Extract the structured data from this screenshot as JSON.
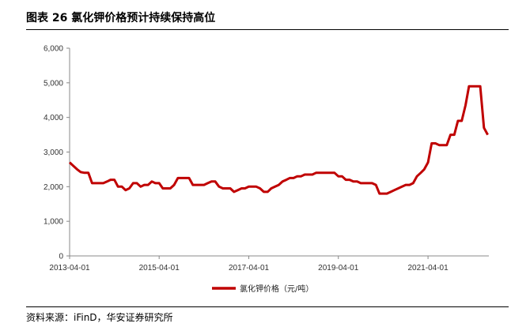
{
  "header": {
    "title": "图表 26  氯化钾价格预计持续保持高位"
  },
  "footer": {
    "source": "资料来源：iFinD，华安证券研究所"
  },
  "chart_data": {
    "type": "line",
    "ylim": [
      0,
      6000
    ],
    "yticks": [
      0,
      1000,
      2000,
      3000,
      4000,
      5000,
      6000
    ],
    "ytick_labels": [
      "0",
      "1,000",
      "2,000",
      "3,000",
      "4,000",
      "5,000",
      "6,000"
    ],
    "xlim": [
      "2013-04-01",
      "2022-08-10"
    ],
    "xticks": [
      "2013-04-01",
      "2015-04-01",
      "2017-04-01",
      "2019-04-01",
      "2021-04-01"
    ],
    "grid": false,
    "legend_position": "bottom",
    "color": "#c00000",
    "series": [
      {
        "name": "氯化钾价格（元/吨）",
        "x": [
          "2013-04-01",
          "2013-05-01",
          "2013-06-01",
          "2013-07-01",
          "2013-08-01",
          "2013-09-01",
          "2013-10-01",
          "2013-11-01",
          "2013-12-01",
          "2014-01-01",
          "2014-02-01",
          "2014-03-01",
          "2014-04-01",
          "2014-05-01",
          "2014-06-01",
          "2014-07-01",
          "2014-08-01",
          "2014-09-01",
          "2014-10-01",
          "2014-11-01",
          "2014-12-01",
          "2015-01-01",
          "2015-02-01",
          "2015-03-01",
          "2015-04-01",
          "2015-05-01",
          "2015-06-01",
          "2015-07-01",
          "2015-08-01",
          "2015-09-01",
          "2015-10-01",
          "2015-11-01",
          "2015-12-01",
          "2016-01-01",
          "2016-02-01",
          "2016-03-01",
          "2016-04-01",
          "2016-05-01",
          "2016-06-01",
          "2016-07-01",
          "2016-08-01",
          "2016-09-01",
          "2016-10-01",
          "2016-11-01",
          "2016-12-01",
          "2017-01-01",
          "2017-02-01",
          "2017-03-01",
          "2017-04-01",
          "2017-05-01",
          "2017-06-01",
          "2017-07-01",
          "2017-08-01",
          "2017-09-01",
          "2017-10-01",
          "2017-11-01",
          "2017-12-01",
          "2018-01-01",
          "2018-02-01",
          "2018-03-01",
          "2018-04-01",
          "2018-05-01",
          "2018-06-01",
          "2018-07-01",
          "2018-08-01",
          "2018-09-01",
          "2018-10-01",
          "2018-11-01",
          "2018-12-01",
          "2019-01-01",
          "2019-02-01",
          "2019-03-01",
          "2019-04-01",
          "2019-05-01",
          "2019-06-01",
          "2019-07-01",
          "2019-08-01",
          "2019-09-01",
          "2019-10-01",
          "2019-11-01",
          "2019-12-01",
          "2020-01-01",
          "2020-02-01",
          "2020-03-01",
          "2020-04-01",
          "2020-05-01",
          "2020-06-01",
          "2020-07-01",
          "2020-08-01",
          "2020-09-01",
          "2020-10-01",
          "2020-11-01",
          "2020-12-01",
          "2021-01-01",
          "2021-02-01",
          "2021-03-01",
          "2021-04-01",
          "2021-05-01",
          "2021-06-01",
          "2021-07-01",
          "2021-08-01",
          "2021-09-01",
          "2021-10-01",
          "2021-11-01",
          "2021-12-01",
          "2022-01-01",
          "2022-02-01",
          "2022-03-01",
          "2022-04-01",
          "2022-05-01",
          "2022-06-01",
          "2022-07-01",
          "2022-08-01"
        ],
        "values": [
          2700,
          2600,
          2500,
          2420,
          2400,
          2400,
          2100,
          2100,
          2100,
          2100,
          2150,
          2200,
          2200,
          2000,
          2000,
          1900,
          1950,
          2100,
          2100,
          2000,
          2050,
          2050,
          2150,
          2100,
          2100,
          1950,
          1950,
          1950,
          2050,
          2250,
          2250,
          2250,
          2250,
          2050,
          2050,
          2050,
          2050,
          2100,
          2150,
          2150,
          2000,
          1950,
          1950,
          1950,
          1850,
          1900,
          1950,
          1950,
          2000,
          2000,
          2000,
          1950,
          1850,
          1850,
          1950,
          2000,
          2050,
          2150,
          2200,
          2250,
          2250,
          2300,
          2300,
          2350,
          2350,
          2350,
          2400,
          2400,
          2400,
          2400,
          2400,
          2400,
          2300,
          2300,
          2200,
          2200,
          2150,
          2150,
          2100,
          2100,
          2100,
          2100,
          2050,
          1800,
          1800,
          1800,
          1850,
          1900,
          1950,
          2000,
          2050,
          2050,
          2100,
          2300,
          2400,
          2500,
          2700,
          3250,
          3250,
          3200,
          3200,
          3200,
          3500,
          3500,
          3900,
          3900,
          4350,
          4900,
          4900,
          4900,
          4900,
          3700,
          3500
        ]
      }
    ]
  }
}
